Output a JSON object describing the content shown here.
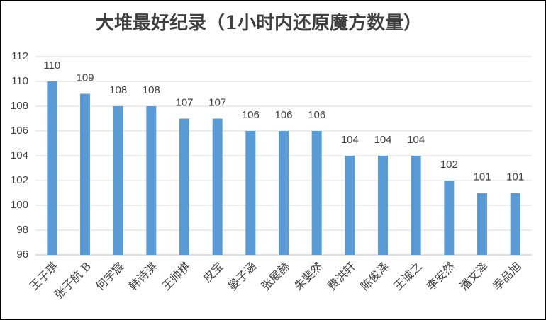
{
  "chart_data": {
    "type": "bar",
    "title": "大堆最好纪录（1小时内还原魔方数量）",
    "categories": [
      "王子琪",
      "张子航 B",
      "何宇宸",
      "韩诗淇",
      "王帅棋",
      "皮宝",
      "晏子涵",
      "张展赫",
      "朱斐然",
      "费洪轩",
      "陈俊泽",
      "王诚之",
      "李安然",
      "潘文泽",
      "季品旭"
    ],
    "values": [
      110,
      109,
      108,
      108,
      107,
      107,
      106,
      106,
      106,
      104,
      104,
      104,
      102,
      101,
      101
    ],
    "color": "#5b9bd5",
    "ylim": [
      96,
      112
    ],
    "yticks": [
      96,
      98,
      100,
      102,
      104,
      106,
      108,
      110,
      112
    ],
    "grid": true
  }
}
